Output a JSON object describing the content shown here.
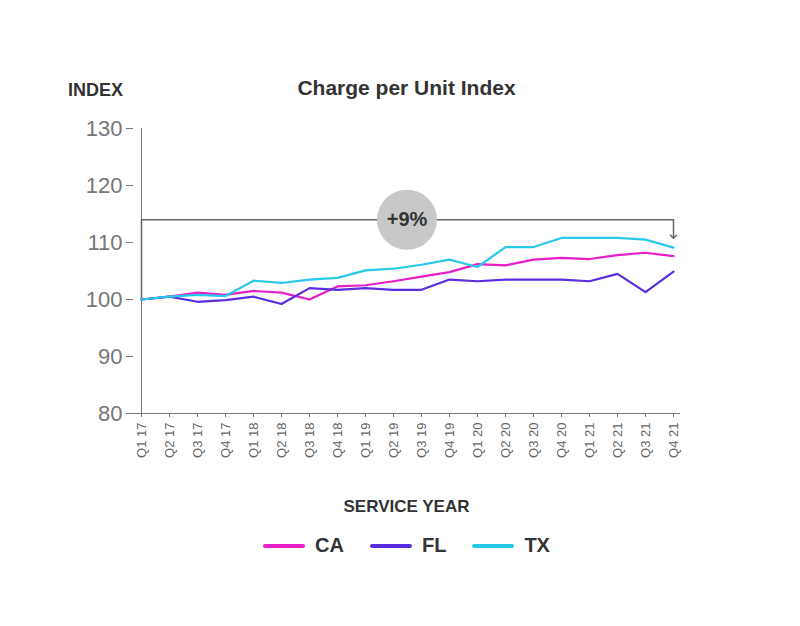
{
  "chart_data": {
    "type": "line",
    "title": "Charge per Unit Index",
    "y_label": "INDEX",
    "x_label": "SERVICE YEAR",
    "categories": [
      "Q1 17",
      "Q2 17",
      "Q3 17",
      "Q4 17",
      "Q1 18",
      "Q2 18",
      "Q3 18",
      "Q4 18",
      "Q1 19",
      "Q2 19",
      "Q3 19",
      "Q4 19",
      "Q1 20",
      "Q2 20",
      "Q3 20",
      "Q4 20",
      "Q1 21",
      "Q2 21",
      "Q3 21",
      "Q4 21"
    ],
    "series": [
      {
        "name": "CA",
        "color": "#e91ec8",
        "values": [
          100,
          100.5,
          101.2,
          100.8,
          101.5,
          101.2,
          100,
          102.3,
          102.5,
          103.2,
          104,
          104.8,
          106.2,
          106,
          107,
          107.3,
          107.1,
          107.8,
          108.2,
          107.6
        ]
      },
      {
        "name": "FL",
        "color": "#5a2de0",
        "values": [
          100,
          100.5,
          99.6,
          99.9,
          100.5,
          99.2,
          102,
          101.7,
          102,
          101.7,
          101.7,
          103.5,
          103.2,
          103.5,
          103.5,
          103.5,
          103.2,
          104.5,
          101.3,
          104.9
        ]
      },
      {
        "name": "TX",
        "color": "#27c9e8",
        "values": [
          100,
          100.5,
          100.8,
          100.6,
          103.3,
          102.9,
          103.5,
          103.8,
          105.1,
          105.4,
          106.1,
          107,
          105.7,
          109.2,
          109.2,
          110.8,
          110.8,
          110.8,
          110.5,
          109.1
        ]
      }
    ],
    "annotation": {
      "text": "+9%",
      "from": "Q1 17",
      "to": "Q4 21",
      "y_start": 100,
      "y": 114,
      "y_end": 111
    },
    "ylim": [
      80,
      130
    ],
    "yticks": [
      80,
      90,
      100,
      110,
      120,
      130
    ],
    "grid": false,
    "legend": "bottom"
  }
}
